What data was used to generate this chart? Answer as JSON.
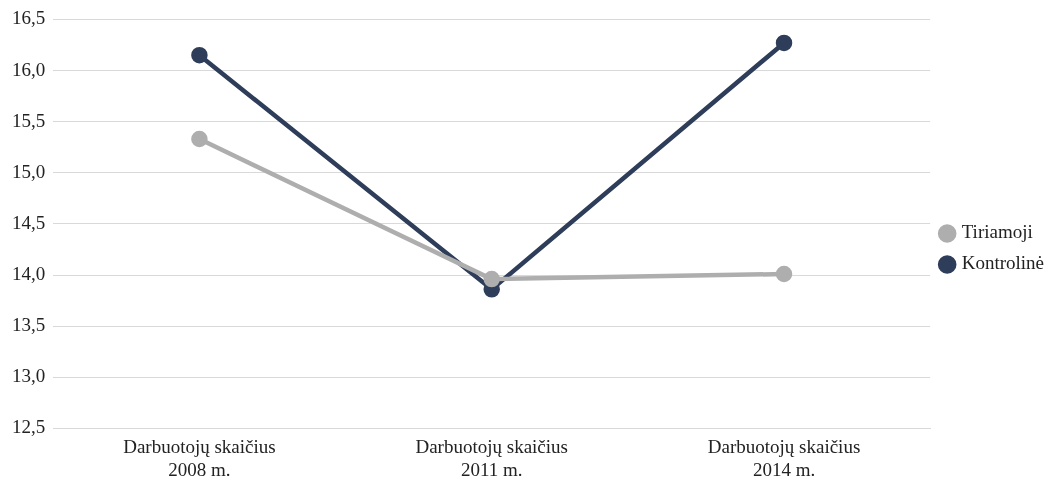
{
  "chart_data": {
    "type": "line",
    "categories": [
      "Darbuotojų skaičius 2008 m.",
      "Darbuotojų skaičius 2011 m.",
      "Darbuotojų skaičius 2014 m."
    ],
    "series": [
      {
        "name": "Tiriamoji",
        "color": "#aeaeae",
        "values": [
          15.33,
          13.96,
          14.01
        ]
      },
      {
        "name": "Kontrolinė",
        "color": "#2e3d59",
        "values": [
          16.15,
          13.86,
          16.27
        ]
      }
    ],
    "ylim": [
      12.5,
      16.5
    ],
    "yticks": [
      {
        "value": 12.5,
        "label": "12,5"
      },
      {
        "value": 13,
        "label": "13,0"
      },
      {
        "value": 13.5,
        "label": "13,5"
      },
      {
        "value": 14,
        "label": "14,0"
      },
      {
        "value": 14.5,
        "label": "14,5"
      },
      {
        "value": 15,
        "label": "15,0"
      },
      {
        "value": 15.5,
        "label": "15,5"
      },
      {
        "value": 16,
        "label": "16,0"
      },
      {
        "value": 16.5,
        "label": "16,5"
      }
    ],
    "grid": "y",
    "legend": "right",
    "marker": "circle",
    "line_style": "solid"
  }
}
